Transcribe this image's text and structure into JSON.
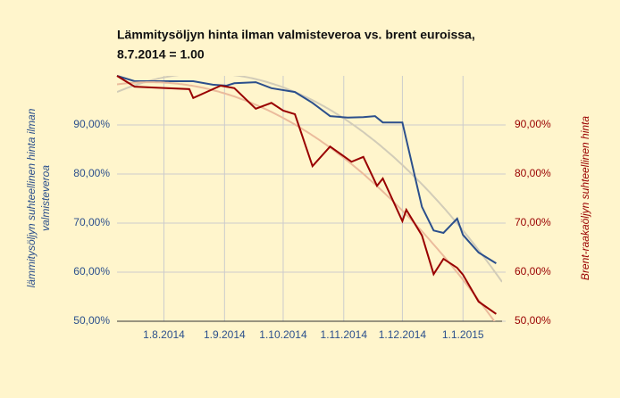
{
  "chart_data": {
    "type": "line",
    "title": [
      "Lämmitysöljyn hinta ilman valmisteveroa vs. brent euroissa,",
      "8.7.2014 = 1.00"
    ],
    "ylabel": [
      "lämmitysöljyn suhteellinen hinta ilman",
      "valmisteveroa"
    ],
    "y2label": "Brent-raakaöljyn suhteellinen hinta",
    "xlim": [
      "2014-07-08",
      "2015-01-21"
    ],
    "xticks": [
      {
        "value": "2014-08-01",
        "label": "1.8.2014"
      },
      {
        "value": "2014-09-01",
        "label": "1.9.2014"
      },
      {
        "value": "2014-10-01",
        "label": "1.10.2014"
      },
      {
        "value": "2014-11-01",
        "label": "1.11.2014"
      },
      {
        "value": "2014-12-01",
        "label": "1.12.2014"
      },
      {
        "value": "2015-01-01",
        "label": "1.1.2015"
      }
    ],
    "ylim": [
      50,
      100
    ],
    "yticks": [
      {
        "value": 50,
        "label": "50,00%"
      },
      {
        "value": 60,
        "label": "60,00%"
      },
      {
        "value": 70,
        "label": "70,00%"
      },
      {
        "value": 80,
        "label": "80,00%"
      },
      {
        "value": 90,
        "label": "90,00%"
      }
    ],
    "y2lim": [
      50,
      100
    ],
    "y2ticks": [
      {
        "value": 50,
        "label": "50,00%"
      },
      {
        "value": 60,
        "label": "60,00%"
      },
      {
        "value": 70,
        "label": "70,00%"
      },
      {
        "value": 80,
        "label": "80,00%"
      },
      {
        "value": 90,
        "label": "90,00%"
      }
    ],
    "grid": true,
    "trendline": "polynomial",
    "series": [
      {
        "color": "#2b4f8c",
        "trend_color": "#d2ccb8",
        "axis": "y",
        "x": [
          "2014-07-08",
          "2014-07-17",
          "2014-07-28",
          "2014-08-16",
          "2014-08-26",
          "2014-09-02",
          "2014-09-06",
          "2014-09-17",
          "2014-09-25",
          "2014-10-07",
          "2014-10-16",
          "2014-10-25",
          "2014-11-03",
          "2014-11-11",
          "2014-11-17",
          "2014-11-21",
          "2014-12-01",
          "2014-12-11",
          "2014-12-17",
          "2014-12-22",
          "2014-12-29",
          "2015-01-01",
          "2015-01-09",
          "2015-01-18"
        ],
        "values": [
          100,
          98.9,
          98.9,
          98.9,
          98.2,
          98.0,
          98.5,
          98.7,
          97.5,
          96.7,
          94.5,
          91.8,
          91.5,
          91.6,
          91.8,
          90.5,
          90.5,
          73.3,
          68.5,
          68.0,
          70.9,
          67.6,
          64.0,
          61.8
        ]
      },
      {
        "color": "#990000",
        "trend_color": "#ebbb9c",
        "axis": "y2",
        "x": [
          "2014-07-08",
          "2014-07-17",
          "2014-07-28",
          "2014-08-14",
          "2014-08-16",
          "2014-08-30",
          "2014-09-06",
          "2014-09-17",
          "2014-09-25",
          "2014-10-01",
          "2014-10-07",
          "2014-10-16",
          "2014-10-25",
          "2014-11-05",
          "2014-11-11",
          "2014-11-18",
          "2014-11-21",
          "2014-12-01",
          "2014-12-03",
          "2014-12-11",
          "2014-12-17",
          "2014-12-22",
          "2014-12-29",
          "2015-01-01",
          "2015-01-09",
          "2015-01-18"
        ],
        "values": [
          100,
          97.8,
          97.6,
          97.3,
          95.5,
          98.0,
          97.5,
          93.3,
          94.5,
          92.9,
          92.2,
          81.6,
          85.6,
          82.5,
          83.5,
          77.6,
          79.1,
          70.4,
          72.7,
          67.5,
          59.6,
          62.7,
          60.9,
          59.5,
          54.0,
          51.5
        ]
      }
    ]
  }
}
